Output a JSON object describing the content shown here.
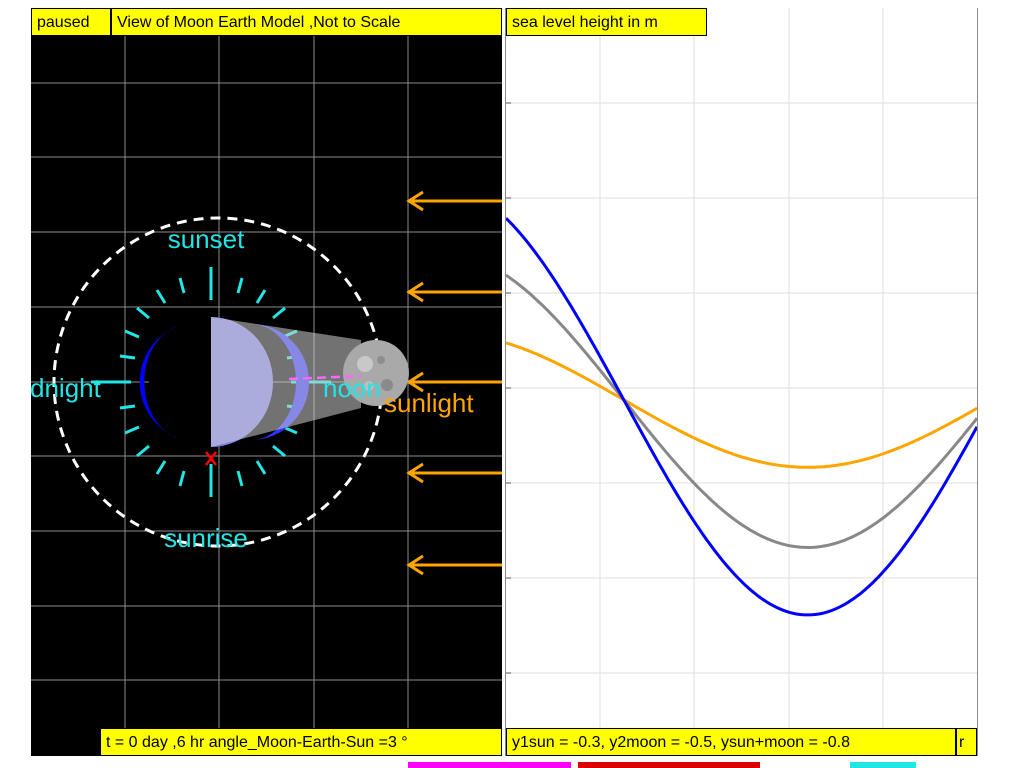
{
  "status": {
    "paused_label": "paused"
  },
  "left_panel": {
    "title": "View of Moon Earth Model ,Not to Scale",
    "footer_text": "t = 0 day ,6 hr angle_Moon-Earth-Sun =3 °",
    "labels": {
      "sunset": "sunset",
      "sunrise": "sunrise",
      "midnight": "dnight",
      "noon": "noon",
      "sunlight": "sunlight"
    },
    "colors": {
      "background": "#000000",
      "label": "#22e5e5",
      "earth_glow": "#0000ff",
      "orbit": "#ffffff",
      "sunlight": "#ffa500",
      "marker": "#ff0000",
      "zenith_line": "#ff66ff"
    }
  },
  "right_panel": {
    "title": "sea level height in m",
    "footer_text": "y1sun = -0.3, y2moon = -0.5, ysun+moon = -0.8",
    "footer_extra": "r"
  },
  "chart_data": {
    "type": "line",
    "title": "sea level height in m",
    "xlabel": "",
    "ylabel": "",
    "x_note": "time (shape only, no tick labels printed)",
    "series": [
      {
        "key": "sun",
        "color": "#ffa500",
        "amp": 0.42,
        "start": 0.64
      },
      {
        "key": "moon",
        "color": "#888888",
        "amp": 0.8,
        "start": 1.4
      },
      {
        "key": "sun_plus_moon",
        "color": "#0000ff",
        "amp": 1.22,
        "start": 2.04
      }
    ],
    "grid": true,
    "legend": "none"
  },
  "bottom_strips": [
    {
      "color": "#ff00ff"
    },
    {
      "color": "#dd0000"
    },
    {
      "color": "#22e5e5"
    }
  ]
}
